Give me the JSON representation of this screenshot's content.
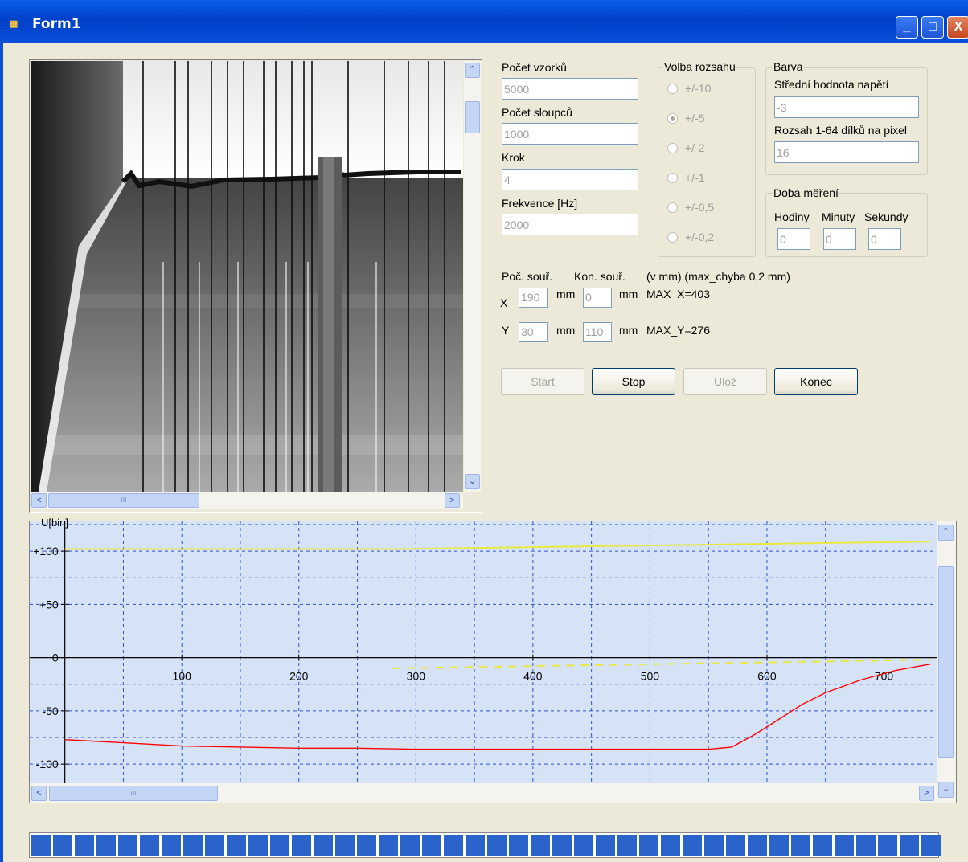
{
  "window": {
    "title": "Form1",
    "icon": "app-icon",
    "minimize": "_",
    "maximize": "□",
    "close": "X"
  },
  "params": {
    "samples_label": "Počet vzorků",
    "samples_value": "5000",
    "columns_label": "Počet sloupců",
    "columns_value": "1000",
    "step_label": "Krok",
    "step_value": "4",
    "freq_label": "Frekvence [Hz]",
    "freq_value": "2000"
  },
  "range": {
    "title": "Volba rozsahu",
    "options": [
      "+/-10",
      "+/-5",
      "+/-2",
      "+/-1",
      "+/-0,5",
      "+/-0,2"
    ],
    "selected": 1
  },
  "color": {
    "title": "Barva",
    "mean_label": "Střední hodnota napětí",
    "mean_value": "-3",
    "range_label": "Rozsah 1-64 dílků na pixel",
    "range_value": "16"
  },
  "duration": {
    "title": "Doba měření",
    "hours_label": "Hodiny",
    "minutes_label": "Minuty",
    "seconds_label": "Sekundy",
    "hours_value": "0",
    "minutes_value": "0",
    "seconds_value": "0"
  },
  "coords": {
    "start_label": "Poč. souř.",
    "end_label": "Kon. souř.",
    "note": "(v mm) (max_chyba 0,2 mm)",
    "x_label": "X",
    "x_start": "190",
    "x_end": "0",
    "x_max": "MAX_X=403",
    "y_label": "Y",
    "y_start": "30",
    "y_end": "110",
    "y_max": "MAX_Y=276",
    "unit": "mm"
  },
  "buttons": {
    "start": "Start",
    "stop": "Stop",
    "save": "Ulož",
    "end": "Konec"
  },
  "scroll_glyphs": {
    "up": "⌃",
    "down": "⌄",
    "left": "<",
    "right": ">",
    "grip": "III"
  },
  "chart_data": {
    "type": "line",
    "ylabel": "U[bin]",
    "xlim": [
      -30,
      745
    ],
    "ylim": [
      -118,
      128
    ],
    "x_ticks": [
      "100",
      "200",
      "300",
      "400",
      "500",
      "600",
      "700"
    ],
    "x_tick_values": [
      100,
      200,
      300,
      400,
      500,
      600,
      700
    ],
    "y_ticks": [
      "+100",
      "+50",
      "0",
      "-50",
      "-100"
    ],
    "y_tick_values": [
      100,
      50,
      0,
      -50,
      -100
    ],
    "grid": true,
    "series": [
      {
        "color": "#ff0000",
        "x": [
          0,
          50,
          100,
          150,
          200,
          250,
          300,
          350,
          400,
          450,
          500,
          550,
          570,
          590,
          610,
          630,
          650,
          680,
          710,
          740
        ],
        "y": [
          -77,
          -80,
          -83,
          -84,
          -85,
          -85,
          -86,
          -86,
          -86,
          -86,
          -86,
          -86,
          -84,
          -72,
          -58,
          -44,
          -33,
          -21,
          -12,
          -6
        ]
      },
      {
        "color": "#e8e840",
        "x": [
          0,
          280,
          740
        ],
        "y": [
          102,
          102,
          109
        ]
      },
      {
        "color": "#e8e840",
        "x": [
          280,
          740
        ],
        "y": [
          -10,
          -2
        ]
      }
    ]
  },
  "progress": {
    "value_percent": 100,
    "color": "#2a63c9"
  }
}
